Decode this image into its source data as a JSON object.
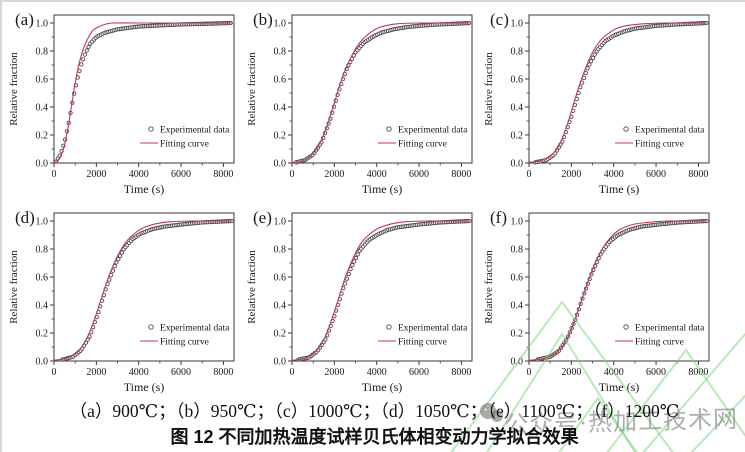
{
  "figure": {
    "caption_line1": "（a）900℃；（b）950℃；（c）1000℃；（d）1050℃；（e）1100℃；（f）1200℃",
    "caption_line2": "图 12 不同加热温度试样贝氏体相变动力学拟合效果"
  },
  "watermark": {
    "text": "公众号·热加工技术网",
    "icon": "wechat-icon",
    "text_color": "#7d7d7d",
    "line_color": "#7dd77d"
  },
  "colors": {
    "fit_line": "#c23b4d",
    "experimental_marker": "#4a4a4a",
    "axis": "#3a3a3a",
    "text": "#1a1a1a"
  },
  "chart_data": [
    {
      "id": "a",
      "label": "(a)",
      "temperature": "900℃",
      "type": "line",
      "xlabel": "Time (s)",
      "ylabel": "Relative fraction",
      "xlim": [
        0,
        8500
      ],
      "ylim": [
        0.0,
        1.05
      ],
      "xticks": [
        0,
        2000,
        4000,
        6000,
        8000
      ],
      "yticks": [
        0.0,
        0.2,
        0.4,
        0.6,
        0.8,
        1.0
      ],
      "legend": [
        "Experimental data",
        "Fitting curve"
      ],
      "series": [
        {
          "name": "Experimental data",
          "type": "scatter",
          "points": [
            [
              100,
              0.01
            ],
            [
              300,
              0.06
            ],
            [
              500,
              0.15
            ],
            [
              700,
              0.29
            ],
            [
              900,
              0.46
            ],
            [
              1100,
              0.6
            ],
            [
              1300,
              0.71
            ],
            [
              1500,
              0.79
            ],
            [
              1700,
              0.85
            ],
            [
              2000,
              0.9
            ],
            [
              2400,
              0.93
            ],
            [
              3000,
              0.955
            ],
            [
              4000,
              0.975
            ],
            [
              5000,
              0.983
            ],
            [
              6000,
              0.99
            ],
            [
              7000,
              0.994
            ],
            [
              8400,
              1.0
            ]
          ]
        },
        {
          "name": "Fitting curve",
          "type": "line",
          "points": [
            [
              0,
              0.0
            ],
            [
              200,
              0.02
            ],
            [
              400,
              0.08
            ],
            [
              600,
              0.2
            ],
            [
              800,
              0.38
            ],
            [
              900,
              0.48
            ],
            [
              1000,
              0.57
            ],
            [
              1200,
              0.72
            ],
            [
              1400,
              0.82
            ],
            [
              1600,
              0.89
            ],
            [
              1800,
              0.94
            ],
            [
              2000,
              0.965
            ],
            [
              2400,
              0.99
            ],
            [
              2800,
              1.0
            ],
            [
              4000,
              1.0
            ],
            [
              6000,
              1.0
            ],
            [
              8400,
              1.0
            ]
          ]
        }
      ]
    },
    {
      "id": "b",
      "label": "(b)",
      "temperature": "950℃",
      "type": "line",
      "xlabel": "Time (s)",
      "ylabel": "Relative fraction",
      "xlim": [
        0,
        8500
      ],
      "ylim": [
        0.0,
        1.05
      ],
      "xticks": [
        0,
        2000,
        4000,
        6000,
        8000
      ],
      "yticks": [
        0.0,
        0.2,
        0.4,
        0.6,
        0.8,
        1.0
      ],
      "legend": [
        "Experimental data",
        "Fitting curve"
      ],
      "series": [
        {
          "name": "Experimental data",
          "type": "scatter",
          "points": [
            [
              200,
              0.005
            ],
            [
              600,
              0.02
            ],
            [
              1000,
              0.06
            ],
            [
              1400,
              0.15
            ],
            [
              1800,
              0.31
            ],
            [
              2200,
              0.51
            ],
            [
              2600,
              0.68
            ],
            [
              3000,
              0.79
            ],
            [
              3400,
              0.86
            ],
            [
              3800,
              0.9
            ],
            [
              4200,
              0.93
            ],
            [
              4800,
              0.955
            ],
            [
              5400,
              0.97
            ],
            [
              6000,
              0.98
            ],
            [
              7000,
              0.99
            ],
            [
              8400,
              1.0
            ]
          ]
        },
        {
          "name": "Fitting curve",
          "type": "line",
          "points": [
            [
              0,
              0.005
            ],
            [
              400,
              0.01
            ],
            [
              800,
              0.04
            ],
            [
              1200,
              0.11
            ],
            [
              1600,
              0.24
            ],
            [
              2000,
              0.43
            ],
            [
              2200,
              0.53
            ],
            [
              2400,
              0.62
            ],
            [
              2800,
              0.76
            ],
            [
              3200,
              0.86
            ],
            [
              3600,
              0.92
            ],
            [
              4000,
              0.96
            ],
            [
              4400,
              0.98
            ],
            [
              5000,
              0.995
            ],
            [
              6000,
              1.0
            ],
            [
              8400,
              1.0
            ]
          ]
        }
      ]
    },
    {
      "id": "c",
      "label": "(c)",
      "temperature": "1000℃",
      "type": "line",
      "xlabel": "Time (s)",
      "ylabel": "Relative fraction",
      "xlim": [
        0,
        8500
      ],
      "ylim": [
        0.0,
        1.05
      ],
      "xticks": [
        0,
        2000,
        4000,
        6000,
        8000
      ],
      "yticks": [
        0.0,
        0.2,
        0.4,
        0.6,
        0.8,
        1.0
      ],
      "legend": [
        "Experimental data",
        "Fitting curve"
      ],
      "series": [
        {
          "name": "Experimental data",
          "type": "scatter",
          "points": [
            [
              300,
              0.005
            ],
            [
              800,
              0.02
            ],
            [
              1200,
              0.06
            ],
            [
              1600,
              0.16
            ],
            [
              2000,
              0.33
            ],
            [
              2400,
              0.53
            ],
            [
              2800,
              0.69
            ],
            [
              3200,
              0.8
            ],
            [
              3600,
              0.87
            ],
            [
              4000,
              0.91
            ],
            [
              4500,
              0.94
            ],
            [
              5000,
              0.96
            ],
            [
              6000,
              0.98
            ],
            [
              7000,
              0.99
            ],
            [
              8400,
              1.0
            ]
          ]
        },
        {
          "name": "Fitting curve",
          "type": "line",
          "points": [
            [
              0,
              0.005
            ],
            [
              500,
              0.015
            ],
            [
              1000,
              0.05
            ],
            [
              1400,
              0.12
            ],
            [
              1800,
              0.27
            ],
            [
              2200,
              0.47
            ],
            [
              2600,
              0.65
            ],
            [
              3000,
              0.79
            ],
            [
              3400,
              0.88
            ],
            [
              3800,
              0.93
            ],
            [
              4200,
              0.965
            ],
            [
              4800,
              0.985
            ],
            [
              5500,
              0.995
            ],
            [
              6500,
              1.0
            ],
            [
              8400,
              1.0
            ]
          ]
        }
      ]
    },
    {
      "id": "d",
      "label": "(d)",
      "temperature": "1050℃",
      "type": "line",
      "xlabel": "Time (s)",
      "ylabel": "Relative fraction",
      "xlim": [
        0,
        8500
      ],
      "ylim": [
        0.0,
        1.05
      ],
      "xticks": [
        0,
        2000,
        4000,
        6000,
        8000
      ],
      "yticks": [
        0.0,
        0.2,
        0.4,
        0.6,
        0.8,
        1.0
      ],
      "legend": [
        "Experimental data",
        "Fitting curve"
      ],
      "series": [
        {
          "name": "Experimental data",
          "type": "scatter",
          "points": [
            [
              400,
              0.01
            ],
            [
              900,
              0.03
            ],
            [
              1300,
              0.08
            ],
            [
              1700,
              0.18
            ],
            [
              2100,
              0.35
            ],
            [
              2500,
              0.54
            ],
            [
              2900,
              0.69
            ],
            [
              3300,
              0.8
            ],
            [
              3700,
              0.87
            ],
            [
              4100,
              0.91
            ],
            [
              4600,
              0.94
            ],
            [
              5200,
              0.96
            ],
            [
              6000,
              0.975
            ],
            [
              7000,
              0.99
            ],
            [
              8400,
              1.0
            ]
          ]
        },
        {
          "name": "Fitting curve",
          "type": "line",
          "points": [
            [
              0,
              0.005
            ],
            [
              600,
              0.02
            ],
            [
              1000,
              0.05
            ],
            [
              1400,
              0.12
            ],
            [
              1800,
              0.25
            ],
            [
              2200,
              0.43
            ],
            [
              2600,
              0.61
            ],
            [
              3000,
              0.75
            ],
            [
              3400,
              0.85
            ],
            [
              3800,
              0.91
            ],
            [
              4200,
              0.95
            ],
            [
              4800,
              0.98
            ],
            [
              5500,
              0.995
            ],
            [
              6500,
              1.0
            ],
            [
              8400,
              1.0
            ]
          ]
        }
      ]
    },
    {
      "id": "e",
      "label": "(e)",
      "temperature": "1100℃",
      "type": "line",
      "xlabel": "Time (s)",
      "ylabel": "Relative fraction",
      "xlim": [
        0,
        8500
      ],
      "ylim": [
        0.0,
        1.05
      ],
      "xticks": [
        0,
        2000,
        4000,
        6000,
        8000
      ],
      "yticks": [
        0.0,
        0.2,
        0.4,
        0.6,
        0.8,
        1.0
      ],
      "legend": [
        "Experimental data",
        "Fitting curve"
      ],
      "series": [
        {
          "name": "Experimental data",
          "type": "scatter",
          "points": [
            [
              300,
              0.01
            ],
            [
              800,
              0.025
            ],
            [
              1200,
              0.07
            ],
            [
              1600,
              0.16
            ],
            [
              2000,
              0.32
            ],
            [
              2400,
              0.51
            ],
            [
              2800,
              0.67
            ],
            [
              3200,
              0.79
            ],
            [
              3600,
              0.86
            ],
            [
              4000,
              0.9
            ],
            [
              4500,
              0.935
            ],
            [
              5000,
              0.955
            ],
            [
              6000,
              0.975
            ],
            [
              7000,
              0.99
            ],
            [
              8400,
              1.0
            ]
          ]
        },
        {
          "name": "Fitting curve",
          "type": "line",
          "points": [
            [
              0,
              0.005
            ],
            [
              500,
              0.015
            ],
            [
              900,
              0.04
            ],
            [
              1300,
              0.1
            ],
            [
              1700,
              0.22
            ],
            [
              2100,
              0.4
            ],
            [
              2500,
              0.59
            ],
            [
              2900,
              0.74
            ],
            [
              3300,
              0.85
            ],
            [
              3700,
              0.91
            ],
            [
              4100,
              0.95
            ],
            [
              4700,
              0.98
            ],
            [
              5400,
              0.995
            ],
            [
              6400,
              1.0
            ],
            [
              8400,
              1.0
            ]
          ]
        }
      ]
    },
    {
      "id": "f",
      "label": "(f)",
      "temperature": "1200℃",
      "type": "line",
      "xlabel": "Time (s)",
      "ylabel": "Relative fraction",
      "xlim": [
        0,
        8500
      ],
      "ylim": [
        0.0,
        1.05
      ],
      "xticks": [
        0,
        2000,
        4000,
        6000,
        8000
      ],
      "yticks": [
        0.0,
        0.2,
        0.4,
        0.6,
        0.8,
        1.0
      ],
      "legend": [
        "Experimental data",
        "Fitting curve"
      ],
      "series": [
        {
          "name": "Experimental data",
          "type": "scatter",
          "points": [
            [
              400,
              0.01
            ],
            [
              1000,
              0.03
            ],
            [
              1400,
              0.07
            ],
            [
              1800,
              0.16
            ],
            [
              2200,
              0.3
            ],
            [
              2600,
              0.48
            ],
            [
              3000,
              0.64
            ],
            [
              3400,
              0.77
            ],
            [
              3800,
              0.85
            ],
            [
              4200,
              0.9
            ],
            [
              4700,
              0.935
            ],
            [
              5300,
              0.96
            ],
            [
              6100,
              0.975
            ],
            [
              7100,
              0.99
            ],
            [
              8400,
              1.0
            ]
          ]
        },
        {
          "name": "Fitting curve",
          "type": "line",
          "points": [
            [
              0,
              0.005
            ],
            [
              600,
              0.015
            ],
            [
              1100,
              0.04
            ],
            [
              1500,
              0.09
            ],
            [
              1900,
              0.19
            ],
            [
              2300,
              0.35
            ],
            [
              2700,
              0.53
            ],
            [
              3100,
              0.69
            ],
            [
              3500,
              0.81
            ],
            [
              3900,
              0.89
            ],
            [
              4300,
              0.94
            ],
            [
              4900,
              0.975
            ],
            [
              5600,
              0.99
            ],
            [
              6600,
              1.0
            ],
            [
              8400,
              1.0
            ]
          ]
        }
      ]
    }
  ]
}
